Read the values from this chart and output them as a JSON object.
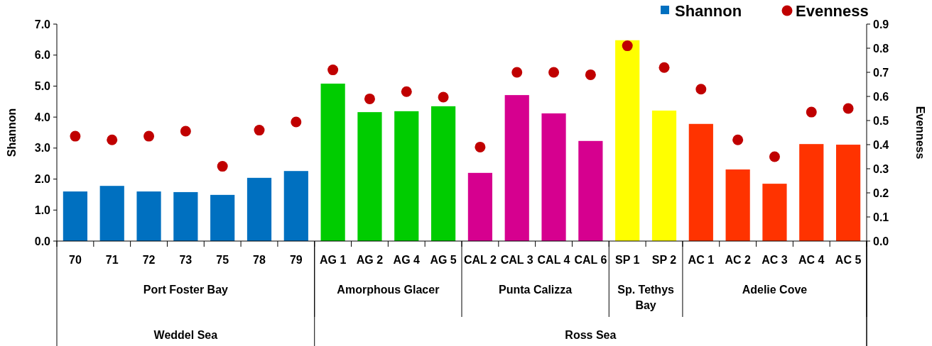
{
  "chart_data": {
    "type": "bar",
    "ylabel": "Shannon",
    "y2label": "Evenness",
    "categories": [
      "70",
      "71",
      "72",
      "73",
      "75",
      "78",
      "79",
      "AG 1",
      "AG 2",
      "AG 4",
      "AG 5",
      "CAL 2",
      "CAL 3",
      "CAL 4",
      "CAL 6",
      "SP 1",
      "SP 2",
      "AC 1",
      "AC 2",
      "AC 3",
      "AC 4",
      "AC 5"
    ],
    "series": [
      {
        "name": "Shannon",
        "color": "#0070c0",
        "colors": [
          "#0070c0",
          "#0070c0",
          "#0070c0",
          "#0070c0",
          "#0070c0",
          "#0070c0",
          "#0070c0",
          "#00cc00",
          "#00cc00",
          "#00cc00",
          "#00cc00",
          "#d6008f",
          "#d6008f",
          "#d6008f",
          "#d6008f",
          "#ffff00",
          "#ffff00",
          "#ff3300",
          "#ff3300",
          "#ff3300",
          "#ff3300",
          "#ff3300"
        ],
        "values": [
          1.6,
          1.78,
          1.6,
          1.58,
          1.49,
          2.04,
          2.26,
          5.08,
          4.16,
          4.19,
          4.35,
          2.2,
          4.71,
          4.12,
          3.23,
          6.48,
          4.21,
          3.78,
          2.31,
          1.85,
          3.13,
          3.11
        ]
      },
      {
        "name": "Evenness",
        "type": "scatter",
        "axis": "y2",
        "color": "#c00000",
        "values": [
          0.435,
          0.42,
          0.435,
          0.456,
          0.31,
          0.46,
          0.494,
          0.71,
          0.59,
          0.62,
          0.597,
          0.39,
          0.7,
          0.7,
          0.69,
          0.81,
          0.72,
          0.63,
          0.42,
          0.35,
          0.535,
          0.55
        ]
      }
    ],
    "ylim": [
      0,
      7
    ],
    "yticks": [
      {
        "value": 0,
        "label": "0.0"
      },
      {
        "value": 1,
        "label": "1.0"
      },
      {
        "value": 2,
        "label": "2.0"
      },
      {
        "value": 3,
        "label": "3.0"
      },
      {
        "value": 4,
        "label": "4.0"
      },
      {
        "value": 5,
        "label": "5.0"
      },
      {
        "value": 6,
        "label": "6.0"
      },
      {
        "value": 7,
        "label": "7.0"
      }
    ],
    "y2lim": [
      0,
      0.9
    ],
    "y2ticks": [
      {
        "value": 0,
        "label": "0.0"
      },
      0.1,
      0.2,
      0.3,
      0.4,
      0.5,
      0.6,
      0.7,
      0.8,
      0.9
    ],
    "annotations": [
      "Port Foster Bay",
      "Amorphous Glacer",
      "Punta Calizza",
      "Sp. Tethys Bay",
      "Adelie Cove",
      "Weddel Sea",
      "Ross Sea"
    ],
    "marker": "circle",
    "legend": "top right",
    "grid": false
  }
}
